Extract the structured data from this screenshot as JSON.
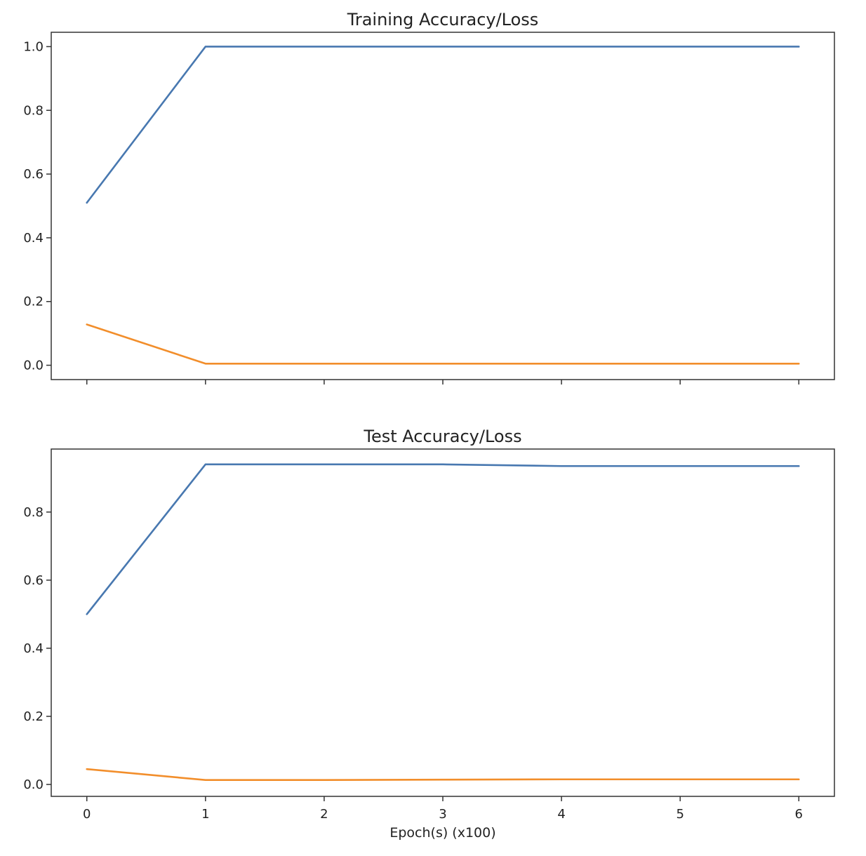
{
  "chart_data": [
    {
      "type": "line",
      "title": "Training Accuracy/Loss",
      "xlabel": "",
      "ylabel": "",
      "x": [
        0,
        1,
        2,
        3,
        4,
        5,
        6
      ],
      "xlim": [
        -0.3,
        6.3
      ],
      "ylim": [
        -0.045,
        1.045
      ],
      "xticks": [
        0,
        1,
        2,
        3,
        4,
        5,
        6
      ],
      "yticks": [
        0.0,
        0.2,
        0.4,
        0.6,
        0.8,
        1.0
      ],
      "ytick_labels": [
        "0.0",
        "0.2",
        "0.4",
        "0.6",
        "0.8",
        "1.0"
      ],
      "show_xtick_labels": false,
      "grid": false,
      "series": [
        {
          "color": "#4878b0",
          "values": [
            0.51,
            1.0,
            1.0,
            1.0,
            1.0,
            1.0,
            1.0
          ]
        },
        {
          "color": "#f28e2b",
          "values": [
            0.128,
            0.005,
            0.005,
            0.005,
            0.005,
            0.005,
            0.005
          ]
        }
      ]
    },
    {
      "type": "line",
      "title": "Test Accuracy/Loss",
      "xlabel": "Epoch(s) (x100)",
      "ylabel": "",
      "x": [
        0,
        1,
        2,
        3,
        4,
        5,
        6
      ],
      "xlim": [
        -0.3,
        6.3
      ],
      "ylim": [
        -0.035,
        0.985
      ],
      "xticks": [
        0,
        1,
        2,
        3,
        4,
        5,
        6
      ],
      "xtick_labels": [
        "0",
        "1",
        "2",
        "3",
        "4",
        "5",
        "6"
      ],
      "yticks": [
        0.0,
        0.2,
        0.4,
        0.6,
        0.8
      ],
      "ytick_labels": [
        "0.0",
        "0.2",
        "0.4",
        "0.6",
        "0.8"
      ],
      "show_xtick_labels": true,
      "grid": false,
      "series": [
        {
          "color": "#4878b0",
          "values": [
            0.5,
            0.94,
            0.94,
            0.94,
            0.935,
            0.935,
            0.935
          ]
        },
        {
          "color": "#f28e2b",
          "values": [
            0.045,
            0.013,
            0.013,
            0.014,
            0.015,
            0.015,
            0.015
          ]
        }
      ]
    }
  ]
}
